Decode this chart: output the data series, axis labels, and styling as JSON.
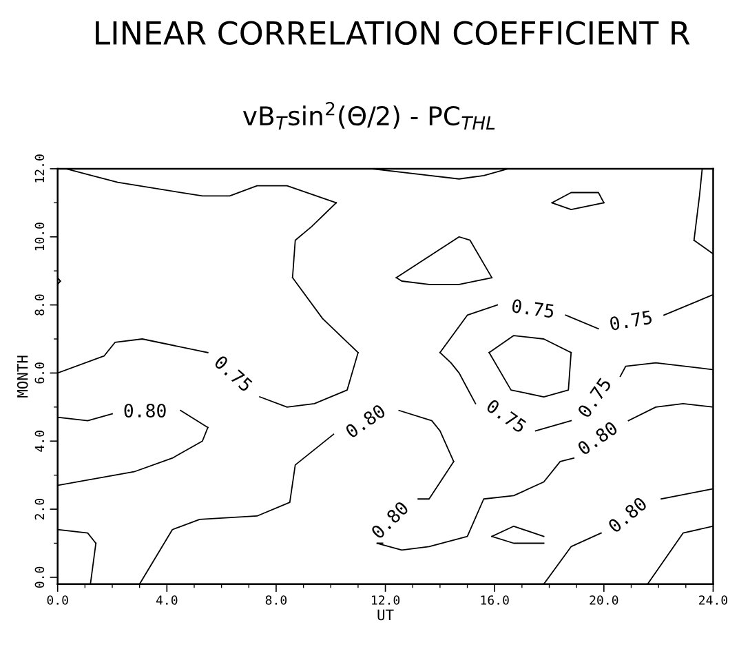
{
  "chart_data": {
    "type": "line",
    "title": "LINEAR CORRELATION COEFFICIENT R",
    "subtitle": "vB$_{T}$sin$^{2}$(Θ/2) - PC$_{THL}$",
    "xlabel": "UT",
    "ylabel": "MONTH",
    "xlim": [
      0,
      24
    ],
    "ylim": [
      -0.2,
      12
    ],
    "xticks": [
      {
        "value": 0,
        "label": "0.0"
      },
      {
        "value": 4,
        "label": "4.0"
      },
      {
        "value": 8,
        "label": "8.0"
      },
      {
        "value": 12,
        "label": "12.0"
      },
      {
        "value": 16,
        "label": "16.0"
      },
      {
        "value": 20,
        "label": "20.0"
      },
      {
        "value": 24,
        "label": "24.0"
      }
    ],
    "yticks": [
      {
        "value": 0,
        "label": "0.0"
      },
      {
        "value": 2,
        "label": "2.0"
      },
      {
        "value": 4,
        "label": "4.0"
      },
      {
        "value": 6,
        "label": "6.0"
      },
      {
        "value": 8,
        "label": "8.0"
      },
      {
        "value": 10,
        "label": "10.0"
      },
      {
        "value": 12,
        "label": "12.0"
      }
    ],
    "grid": false,
    "legend": false,
    "marker": "none",
    "line_style": "solid",
    "series": [
      {
        "color": "#000000",
        "x": [
          0.3,
          2.2,
          5.3,
          6.3,
          7.3,
          8.4,
          10.2
        ],
        "values": [
          12.0,
          11.6,
          11.2,
          11.2,
          11.5,
          11.5,
          11.0
        ]
      },
      {
        "color": "#000000",
        "x": [
          10.2,
          9.3,
          8.7,
          8.6
        ],
        "values": [
          11.0,
          10.3,
          9.9,
          8.8
        ]
      },
      {
        "color": "#000000",
        "x": [
          8.6,
          9.7,
          11.0
        ],
        "values": [
          8.8,
          7.6,
          6.6
        ]
      },
      {
        "color": "#000000",
        "x": [
          11.0,
          10.6,
          9.4,
          8.4,
          7.4,
          6.4,
          5.5,
          3.1,
          2.1,
          1.7,
          0.0
        ],
        "values": [
          6.6,
          5.5,
          5.1,
          5.0,
          5.3,
          null,
          6.6,
          7.0,
          6.9,
          6.5,
          6.0
        ]
      },
      {
        "color": "#000000",
        "x": [
          0.0,
          1.1,
          2.0,
          3.2,
          4.5,
          5.5
        ],
        "values": [
          4.7,
          4.6,
          4.8,
          null,
          4.9,
          4.4
        ]
      },
      {
        "color": "#000000",
        "x": [
          5.5,
          5.3,
          4.2,
          2.8,
          0.0
        ],
        "values": [
          4.4,
          4.0,
          3.5,
          3.1,
          2.7
        ]
      },
      {
        "color": "#000000",
        "x": [
          0.0,
          1.1,
          1.4
        ],
        "values": [
          1.4,
          1.3,
          1.0
        ]
      },
      {
        "color": "#000000",
        "x": [
          1.4,
          1.2
        ],
        "values": [
          1.0,
          -0.2
        ]
      },
      {
        "color": "#000000",
        "x": [
          3.0,
          4.2,
          5.2,
          7.3,
          8.5,
          8.7,
          10.1,
          11.3,
          12.5,
          13.7,
          14.0,
          14.5
        ],
        "values": [
          -0.2,
          1.4,
          1.7,
          1.8,
          2.2,
          3.3,
          4.2,
          null,
          4.9,
          4.6,
          4.3,
          3.4
        ]
      },
      {
        "color": "#000000",
        "x": [
          14.5,
          13.6,
          13.2,
          12.2,
          11.9,
          11.7
        ],
        "values": [
          3.4,
          2.3,
          2.3,
          null,
          1.0,
          1.0
        ]
      },
      {
        "color": "#000000",
        "x": [
          11.7,
          12.6,
          13.6,
          15.0,
          15.6,
          16.7,
          17.8,
          18.4,
          18.9,
          19.8,
          20.9,
          21.9,
          22.9,
          24.0
        ],
        "values": [
          1.0,
          0.8,
          0.9,
          1.2,
          2.3,
          2.4,
          2.8,
          3.4,
          3.5,
          null,
          4.6,
          5.0,
          5.1,
          5.0
        ]
      },
      {
        "color": "#000000",
        "x": [
          24.0,
          22.2,
          21.0,
          19.8,
          18.6,
          17.4,
          16.1,
          15.0,
          14.0
        ],
        "values": [
          8.3,
          7.7,
          null,
          7.3,
          7.7,
          null,
          8.0,
          7.7,
          6.6
        ]
      },
      {
        "color": "#000000",
        "x": [
          14.0,
          14.4,
          14.7,
          14.9,
          15.3,
          16.4,
          17.5,
          18.8,
          19.7,
          20.6,
          20.8,
          21.9,
          24.0
        ],
        "values": [
          6.6,
          6.3,
          6.0,
          5.7,
          5.1,
          null,
          4.3,
          4.6,
          null,
          5.9,
          6.2,
          6.3,
          6.1
        ]
      },
      {
        "color": "#000000",
        "x": [
          15.8,
          16.7,
          17.8,
          18.8
        ],
        "values": [
          6.6,
          7.1,
          7.0,
          6.6
        ]
      },
      {
        "color": "#000000",
        "x": [
          18.8,
          18.7,
          17.8,
          16.6,
          15.8
        ],
        "values": [
          6.6,
          5.5,
          5.3,
          5.5,
          6.6
        ]
      },
      {
        "color": "#000000",
        "x": [
          12.4,
          14.7,
          15.1,
          15.9
        ],
        "values": [
          8.8,
          10.0,
          9.9,
          8.8
        ]
      },
      {
        "color": "#000000",
        "x": [
          15.9,
          14.7,
          13.6,
          12.6,
          12.4
        ],
        "values": [
          8.8,
          8.6,
          8.6,
          8.7,
          8.8
        ]
      },
      {
        "color": "#000000",
        "x": [
          18.1,
          18.8,
          19.8,
          20.0
        ],
        "values": [
          11.0,
          11.3,
          11.3,
          11.0
        ]
      },
      {
        "color": "#000000",
        "x": [
          20.0,
          18.8,
          18.1
        ],
        "values": [
          11.0,
          10.8,
          11.0
        ]
      },
      {
        "color": "#000000",
        "x": [
          11.5,
          14.7,
          15.6,
          16.5
        ],
        "values": [
          12.0,
          11.7,
          11.8,
          12.0
        ]
      },
      {
        "color": "#000000",
        "x": [
          23.6,
          23.5,
          23.3
        ],
        "values": [
          12.0,
          11.2,
          9.9
        ]
      },
      {
        "color": "#000000",
        "x": [
          23.3,
          24.0
        ],
        "values": [
          9.9,
          9.5
        ]
      },
      {
        "color": "#000000",
        "x": [
          0.0,
          0.1
        ],
        "values": [
          8.8,
          8.7
        ]
      },
      {
        "color": "#000000",
        "x": [
          0.1,
          0.0
        ],
        "values": [
          8.7,
          8.6
        ]
      },
      {
        "color": "#000000",
        "x": [
          15.9,
          16.7,
          17.8
        ],
        "values": [
          1.2,
          1.5,
          1.2
        ]
      },
      {
        "color": "#000000",
        "x": [
          17.8,
          16.7,
          15.9
        ],
        "values": [
          1.0,
          1.0,
          1.2
        ]
      },
      {
        "color": "#000000",
        "x": [
          17.8,
          18.8,
          19.9,
          20.9,
          22.1,
          24.0
        ],
        "values": [
          -0.2,
          0.9,
          1.3,
          null,
          2.3,
          2.6
        ]
      },
      {
        "color": "#000000",
        "x": [
          21.6,
          22.9,
          24.0
        ],
        "values": [
          -0.2,
          1.3,
          1.5
        ]
      }
    ],
    "annotations": [
      "0.75",
      "0.80",
      "0.80",
      "0.80",
      "0.80",
      "0.75",
      "0.75",
      "0.75",
      "0.75",
      "0.80"
    ]
  }
}
